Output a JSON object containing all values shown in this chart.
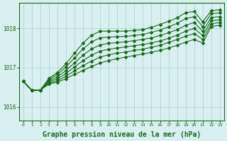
{
  "background_color": "#d8f0f0",
  "grid_color": "#aacfcf",
  "line_color": "#1a6b1a",
  "xlabel": "Graphe pression niveau de la mer (hPa)",
  "xlabel_fontsize": 7,
  "yticks": [
    1016,
    1017,
    1018
  ],
  "xticks": [
    0,
    1,
    2,
    3,
    4,
    5,
    6,
    7,
    8,
    9,
    10,
    11,
    12,
    13,
    14,
    15,
    16,
    17,
    18,
    19,
    20,
    21,
    22,
    23
  ],
  "xlim": [
    -0.5,
    23.5
  ],
  "ylim": [
    1015.65,
    1018.65
  ],
  "series": [
    [
      1016.65,
      1016.42,
      1016.43,
      1016.58,
      1016.63,
      1016.72,
      1016.83,
      1016.93,
      1017.03,
      1017.12,
      1017.18,
      1017.23,
      1017.27,
      1017.31,
      1017.35,
      1017.39,
      1017.44,
      1017.5,
      1017.57,
      1017.65,
      1017.72,
      1017.63,
      1018.05,
      1018.08
    ],
    [
      1016.65,
      1016.42,
      1016.43,
      1016.6,
      1016.67,
      1016.78,
      1016.92,
      1017.05,
      1017.17,
      1017.27,
      1017.33,
      1017.37,
      1017.4,
      1017.44,
      1017.47,
      1017.52,
      1017.57,
      1017.64,
      1017.72,
      1017.8,
      1017.87,
      1017.72,
      1018.12,
      1018.15
    ],
    [
      1016.65,
      1016.42,
      1016.43,
      1016.63,
      1016.72,
      1016.85,
      1017.02,
      1017.18,
      1017.32,
      1017.42,
      1017.47,
      1017.5,
      1017.53,
      1017.56,
      1017.59,
      1017.63,
      1017.68,
      1017.75,
      1017.83,
      1017.93,
      1018.0,
      1017.82,
      1018.2,
      1018.22
    ],
    [
      1016.65,
      1016.42,
      1016.43,
      1016.66,
      1016.77,
      1016.93,
      1017.12,
      1017.32,
      1017.48,
      1017.58,
      1017.62,
      1017.64,
      1017.66,
      1017.69,
      1017.72,
      1017.76,
      1017.82,
      1017.89,
      1017.97,
      1018.08,
      1018.15,
      1017.93,
      1018.28,
      1018.3
    ],
    [
      1016.65,
      1016.42,
      1016.43,
      1016.7,
      1016.83,
      1017.02,
      1017.25,
      1017.48,
      1017.66,
      1017.76,
      1017.78,
      1017.79,
      1017.8,
      1017.82,
      1017.85,
      1017.9,
      1017.96,
      1018.04,
      1018.13,
      1018.25,
      1018.3,
      1018.05,
      1018.38,
      1018.4
    ],
    [
      1016.65,
      1016.42,
      1016.43,
      1016.73,
      1016.88,
      1017.1,
      1017.37,
      1017.63,
      1017.83,
      1017.93,
      1017.93,
      1017.93,
      1017.93,
      1017.95,
      1017.97,
      1018.03,
      1018.1,
      1018.18,
      1018.27,
      1018.4,
      1018.43,
      1018.17,
      1018.45,
      1018.48
    ]
  ],
  "marker": "D",
  "markersize": 2.0,
  "linewidth": 0.8
}
